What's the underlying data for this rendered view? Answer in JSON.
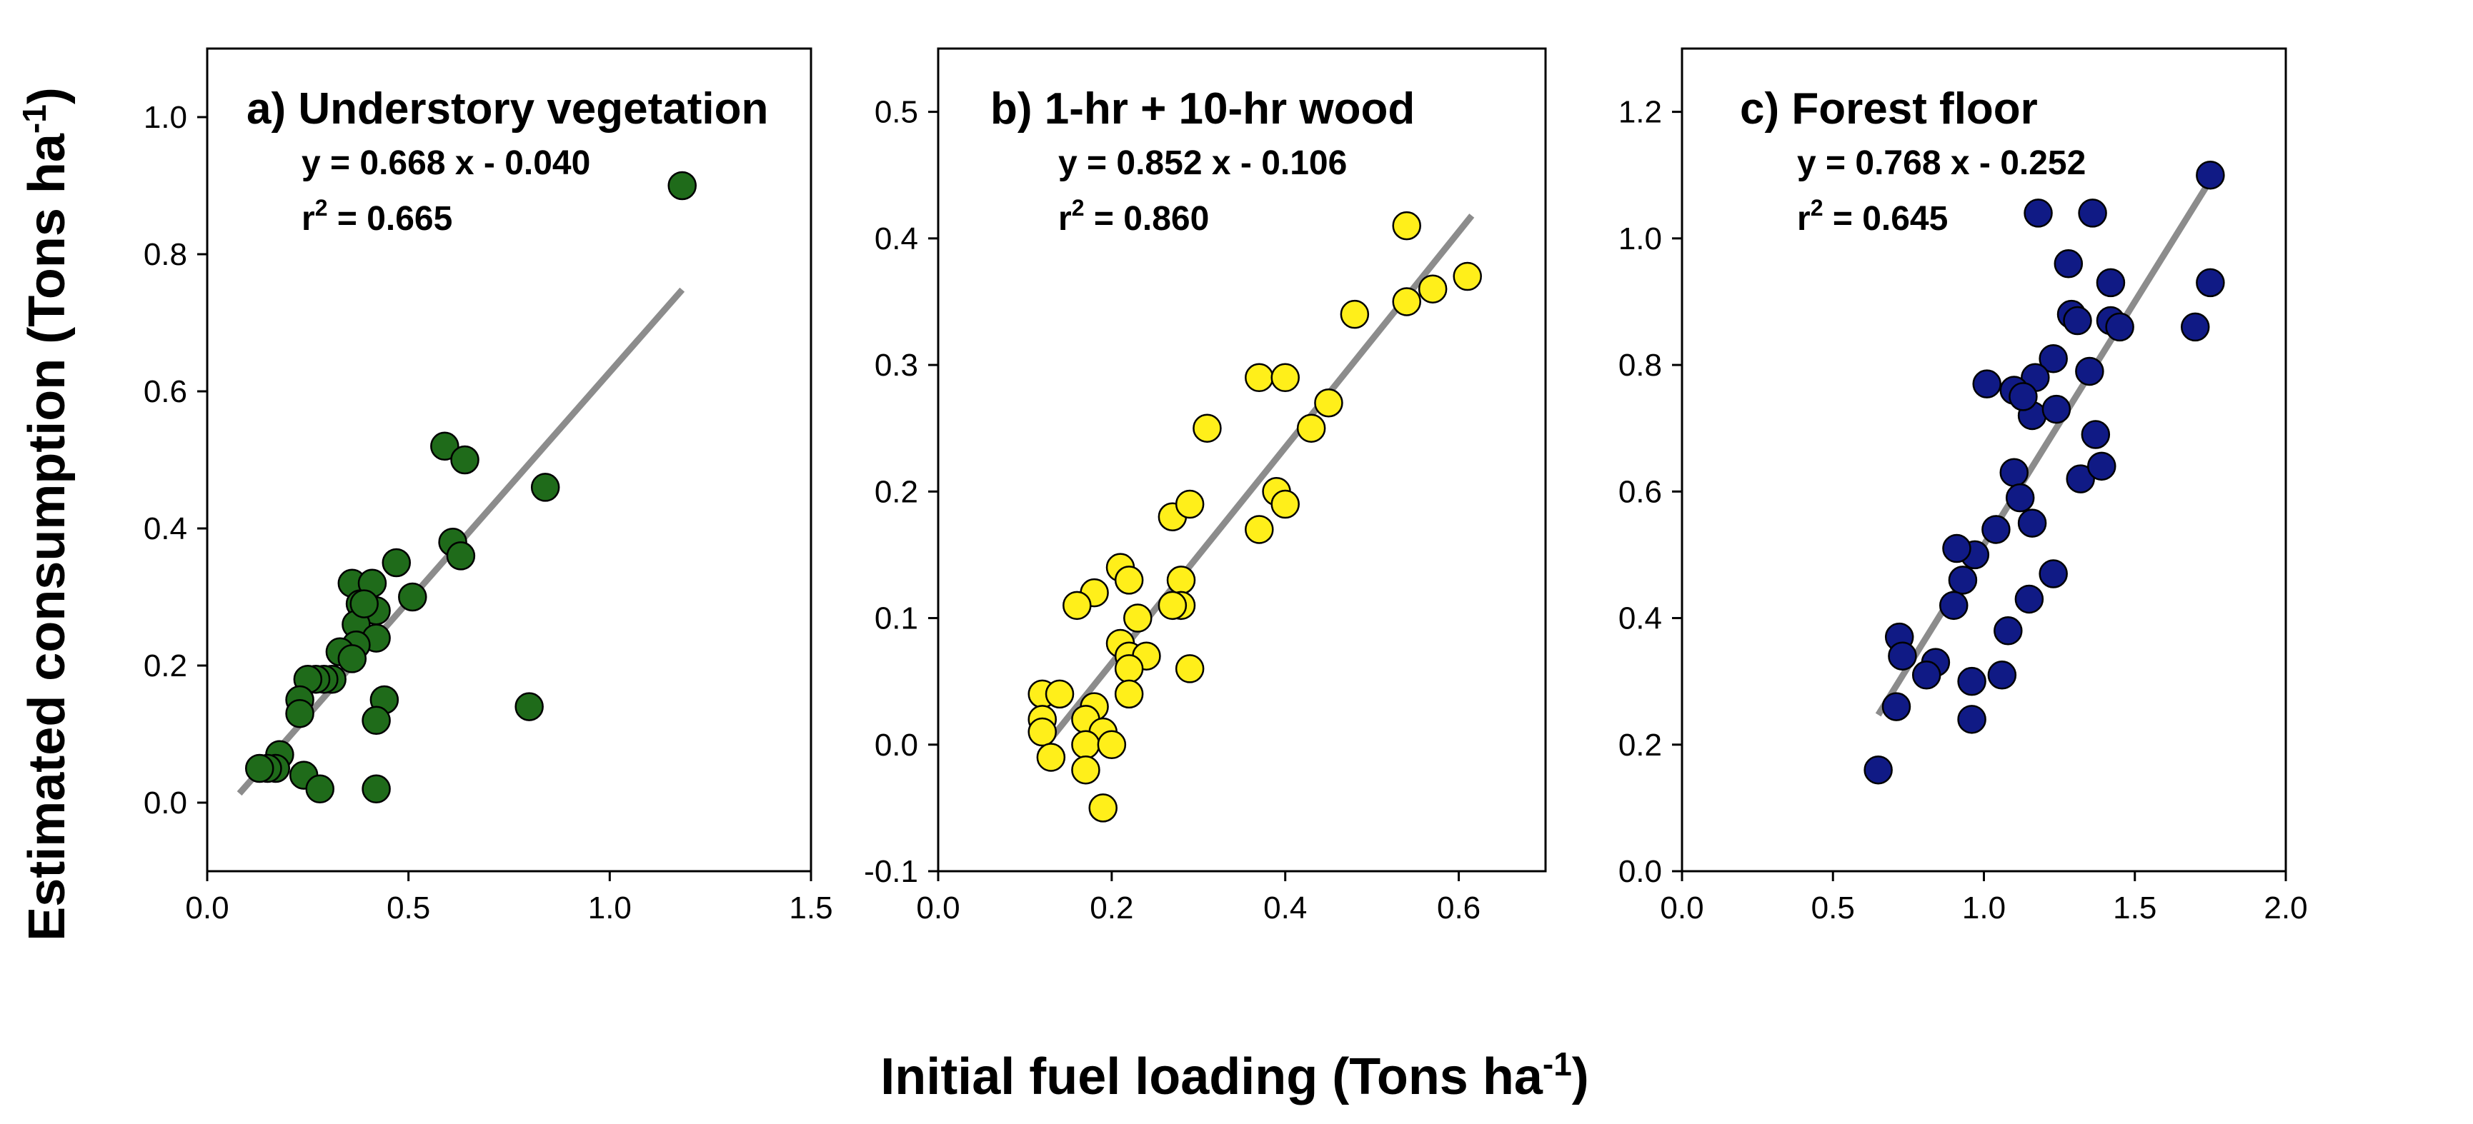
{
  "figure": {
    "ylabel_main": "Estimated consumption (Tons ha",
    "ylabel_sup": "-1",
    "ylabel_end": ")",
    "xlabel_main": "Initial fuel loading (Tons ha",
    "xlabel_sup": "-1",
    "xlabel_end": ")"
  },
  "chart_data": [
    {
      "type": "scatter",
      "title": "a) Understory vegetation",
      "equation": "y = 0.668 x - 0.040",
      "r2_label": "r",
      "r2_sup": "2",
      "r2_value": " = 0.665",
      "marker_color": "#1f6b1a",
      "line_color": "#8c8c8c",
      "xlim": [
        0,
        1.5
      ],
      "ylim": [
        -0.1,
        1.1
      ],
      "xticks": [
        0.0,
        0.5,
        1.0,
        1.5
      ],
      "yticks": [
        0.0,
        0.2,
        0.4,
        0.6,
        0.8,
        1.0
      ],
      "xtick_labels": [
        "0.0",
        "0.5",
        "1.0",
        "1.5"
      ],
      "ytick_labels": [
        "0.0",
        "0.2",
        "0.4",
        "0.6",
        "0.8",
        "1.0"
      ],
      "fit": {
        "x0": 0.08,
        "x1": 1.18,
        "slope": 0.668,
        "intercept": -0.04
      },
      "points": [
        [
          1.18,
          0.9
        ],
        [
          0.84,
          0.46
        ],
        [
          0.59,
          0.52
        ],
        [
          0.64,
          0.5
        ],
        [
          0.61,
          0.38
        ],
        [
          0.63,
          0.36
        ],
        [
          0.47,
          0.35
        ],
        [
          0.51,
          0.3
        ],
        [
          0.36,
          0.32
        ],
        [
          0.41,
          0.32
        ],
        [
          0.38,
          0.29
        ],
        [
          0.42,
          0.28
        ],
        [
          0.37,
          0.26
        ],
        [
          0.39,
          0.29
        ],
        [
          0.42,
          0.24
        ],
        [
          0.37,
          0.23
        ],
        [
          0.33,
          0.22
        ],
        [
          0.36,
          0.21
        ],
        [
          0.31,
          0.18
        ],
        [
          0.29,
          0.18
        ],
        [
          0.27,
          0.18
        ],
        [
          0.25,
          0.18
        ],
        [
          0.23,
          0.15
        ],
        [
          0.23,
          0.13
        ],
        [
          0.44,
          0.15
        ],
        [
          0.42,
          0.12
        ],
        [
          0.8,
          0.14
        ],
        [
          0.18,
          0.07
        ],
        [
          0.17,
          0.05
        ],
        [
          0.15,
          0.05
        ],
        [
          0.13,
          0.05
        ],
        [
          0.24,
          0.04
        ],
        [
          0.28,
          0.02
        ],
        [
          0.42,
          0.02
        ]
      ]
    },
    {
      "type": "scatter",
      "title": "b) 1-hr + 10-hr wood",
      "equation": "y = 0.852 x - 0.106",
      "r2_label": "r",
      "r2_sup": "2",
      "r2_value": " = 0.860",
      "marker_color": "#ffef1a",
      "line_color": "#8c8c8c",
      "xlim": [
        0,
        0.7
      ],
      "ylim": [
        -0.1,
        0.55
      ],
      "xticks": [
        0.0,
        0.2,
        0.4,
        0.6
      ],
      "yticks": [
        -0.1,
        0.0,
        0.1,
        0.2,
        0.3,
        0.4,
        0.5
      ],
      "xtick_labels": [
        "0.0",
        "0.2",
        "0.4",
        "0.6"
      ],
      "ytick_labels": [
        "-0.1",
        "0.0",
        "0.1",
        "0.2",
        "0.3",
        "0.4",
        "0.5"
      ],
      "fit": {
        "x0": 0.125,
        "x1": 0.615,
        "slope": 0.852,
        "intercept": -0.106
      },
      "points": [
        [
          0.54,
          0.41
        ],
        [
          0.61,
          0.37
        ],
        [
          0.57,
          0.36
        ],
        [
          0.54,
          0.35
        ],
        [
          0.48,
          0.34
        ],
        [
          0.37,
          0.29
        ],
        [
          0.4,
          0.29
        ],
        [
          0.45,
          0.27
        ],
        [
          0.43,
          0.25
        ],
        [
          0.31,
          0.25
        ],
        [
          0.39,
          0.2
        ],
        [
          0.4,
          0.19
        ],
        [
          0.37,
          0.17
        ],
        [
          0.27,
          0.18
        ],
        [
          0.29,
          0.19
        ],
        [
          0.21,
          0.14
        ],
        [
          0.22,
          0.13
        ],
        [
          0.28,
          0.13
        ],
        [
          0.18,
          0.12
        ],
        [
          0.16,
          0.11
        ],
        [
          0.28,
          0.11
        ],
        [
          0.27,
          0.11
        ],
        [
          0.23,
          0.1
        ],
        [
          0.21,
          0.08
        ],
        [
          0.22,
          0.07
        ],
        [
          0.24,
          0.07
        ],
        [
          0.22,
          0.06
        ],
        [
          0.29,
          0.06
        ],
        [
          0.12,
          0.04
        ],
        [
          0.14,
          0.04
        ],
        [
          0.22,
          0.04
        ],
        [
          0.18,
          0.03
        ],
        [
          0.17,
          0.02
        ],
        [
          0.12,
          0.02
        ],
        [
          0.12,
          0.01
        ],
        [
          0.19,
          0.01
        ],
        [
          0.17,
          0.0
        ],
        [
          0.2,
          0.0
        ],
        [
          0.13,
          -0.01
        ],
        [
          0.17,
          -0.02
        ],
        [
          0.19,
          -0.05
        ]
      ]
    },
    {
      "type": "scatter",
      "title": "c) Forest floor",
      "equation": "y = 0.768 x - 0.252",
      "r2_label": "r",
      "r2_sup": "2",
      "r2_value": " = 0.645",
      "marker_color": "#101a85",
      "line_color": "#8c8c8c",
      "xlim": [
        0,
        2.0
      ],
      "ylim": [
        0,
        1.3
      ],
      "xticks": [
        0.0,
        0.5,
        1.0,
        1.5,
        2.0
      ],
      "yticks": [
        0.0,
        0.2,
        0.4,
        0.6,
        0.8,
        1.0,
        1.2
      ],
      "xtick_labels": [
        "0.0",
        "0.5",
        "1.0",
        "1.5",
        "2.0"
      ],
      "ytick_labels": [
        "0.0",
        "0.2",
        "0.4",
        "0.6",
        "0.8",
        "1.0",
        "1.2"
      ],
      "fit": {
        "x0": 0.65,
        "x1": 1.76,
        "slope": 0.768,
        "intercept": -0.252
      },
      "points": [
        [
          1.75,
          1.1
        ],
        [
          1.18,
          1.04
        ],
        [
          1.36,
          1.04
        ],
        [
          1.28,
          0.96
        ],
        [
          1.42,
          0.93
        ],
        [
          1.75,
          0.93
        ],
        [
          1.29,
          0.88
        ],
        [
          1.31,
          0.87
        ],
        [
          1.42,
          0.87
        ],
        [
          1.45,
          0.86
        ],
        [
          1.7,
          0.86
        ],
        [
          1.23,
          0.81
        ],
        [
          1.35,
          0.79
        ],
        [
          1.17,
          0.78
        ],
        [
          1.01,
          0.77
        ],
        [
          1.1,
          0.76
        ],
        [
          1.16,
          0.72
        ],
        [
          1.13,
          0.75
        ],
        [
          1.24,
          0.73
        ],
        [
          1.37,
          0.69
        ],
        [
          1.1,
          0.63
        ],
        [
          1.32,
          0.62
        ],
        [
          1.39,
          0.64
        ],
        [
          1.12,
          0.59
        ],
        [
          1.16,
          0.55
        ],
        [
          1.04,
          0.54
        ],
        [
          0.97,
          0.5
        ],
        [
          0.91,
          0.51
        ],
        [
          1.23,
          0.47
        ],
        [
          0.93,
          0.46
        ],
        [
          1.15,
          0.43
        ],
        [
          0.9,
          0.42
        ],
        [
          1.08,
          0.38
        ],
        [
          0.72,
          0.37
        ],
        [
          0.73,
          0.34
        ],
        [
          0.84,
          0.33
        ],
        [
          0.81,
          0.31
        ],
        [
          0.96,
          0.3
        ],
        [
          1.06,
          0.31
        ],
        [
          0.71,
          0.26
        ],
        [
          0.96,
          0.24
        ],
        [
          0.65,
          0.16
        ]
      ]
    }
  ]
}
